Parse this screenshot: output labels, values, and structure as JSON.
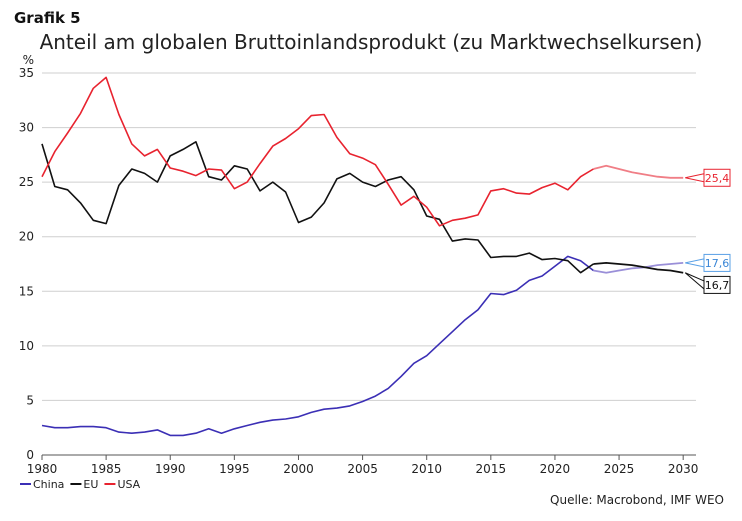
{
  "figure_label": "Grafik 5",
  "source": "Quelle: Macrobond, IMF WEO",
  "chart_data": {
    "type": "line",
    "title": "Anteil am globalen Bruttoinlandsprodukt (zu Marktwechselkursen)",
    "ylabel": "%",
    "xlabel": "",
    "xlim": [
      1980,
      2031
    ],
    "ylim": [
      0,
      35
    ],
    "xticks": [
      1980,
      1985,
      1990,
      1995,
      2000,
      2005,
      2010,
      2015,
      2020,
      2025,
      2030
    ],
    "yticks": [
      0,
      5,
      10,
      15,
      20,
      25,
      30,
      35
    ],
    "grid": "horizontal",
    "legend_position": "bottom-left",
    "forecast_from": 2023,
    "series": [
      {
        "name": "China",
        "color": "#3b2fb5",
        "forecast_color": "#9a8fd8",
        "x": [
          1980,
          1981,
          1982,
          1983,
          1984,
          1985,
          1986,
          1987,
          1988,
          1989,
          1990,
          1991,
          1992,
          1993,
          1994,
          1995,
          1996,
          1997,
          1998,
          1999,
          2000,
          2001,
          2002,
          2003,
          2004,
          2005,
          2006,
          2007,
          2008,
          2009,
          2010,
          2011,
          2012,
          2013,
          2014,
          2015,
          2016,
          2017,
          2018,
          2019,
          2020,
          2021,
          2022,
          2023,
          2024,
          2025,
          2026,
          2027,
          2028,
          2029,
          2030
        ],
        "values": [
          2.7,
          2.5,
          2.5,
          2.6,
          2.6,
          2.5,
          2.1,
          2.0,
          2.1,
          2.3,
          1.8,
          1.8,
          2.0,
          2.4,
          2.0,
          2.4,
          2.7,
          3.0,
          3.2,
          3.3,
          3.5,
          3.9,
          4.2,
          4.3,
          4.5,
          4.9,
          5.4,
          6.1,
          7.2,
          8.4,
          9.1,
          10.2,
          11.3,
          12.4,
          13.3,
          14.8,
          14.7,
          15.1,
          16.0,
          16.4,
          17.3,
          18.2,
          17.8,
          16.9,
          16.7,
          16.9,
          17.1,
          17.2,
          17.4,
          17.5,
          17.6
        ],
        "end_label": "17,6"
      },
      {
        "name": "EU",
        "color": "#111111",
        "forecast_color": "#111111",
        "x": [
          1980,
          1981,
          1982,
          1983,
          1984,
          1985,
          1986,
          1987,
          1988,
          1989,
          1990,
          1991,
          1992,
          1993,
          1994,
          1995,
          1996,
          1997,
          1998,
          1999,
          2000,
          2001,
          2002,
          2003,
          2004,
          2005,
          2006,
          2007,
          2008,
          2009,
          2010,
          2011,
          2012,
          2013,
          2014,
          2015,
          2016,
          2017,
          2018,
          2019,
          2020,
          2021,
          2022,
          2023,
          2024,
          2025,
          2026,
          2027,
          2028,
          2029,
          2030
        ],
        "values": [
          28.5,
          24.6,
          24.3,
          23.1,
          21.5,
          21.2,
          24.7,
          26.2,
          25.8,
          25.0,
          27.4,
          28.0,
          28.7,
          25.5,
          25.2,
          26.5,
          26.2,
          24.2,
          25.0,
          24.1,
          21.3,
          21.8,
          23.1,
          25.3,
          25.8,
          25.0,
          24.6,
          25.2,
          25.5,
          24.3,
          21.9,
          21.6,
          19.6,
          19.8,
          19.7,
          18.1,
          18.2,
          18.2,
          18.5,
          17.9,
          18.0,
          17.8,
          16.7,
          17.5,
          17.6,
          17.5,
          17.4,
          17.2,
          17.0,
          16.9,
          16.7
        ],
        "end_label": "16,7"
      },
      {
        "name": "USA",
        "color": "#e8232f",
        "forecast_color": "#f07e86",
        "x": [
          1980,
          1981,
          1982,
          1983,
          1984,
          1985,
          1986,
          1987,
          1988,
          1989,
          1990,
          1991,
          1992,
          1993,
          1994,
          1995,
          1996,
          1997,
          1998,
          1999,
          2000,
          2001,
          2002,
          2003,
          2004,
          2005,
          2006,
          2007,
          2008,
          2009,
          2010,
          2011,
          2012,
          2013,
          2014,
          2015,
          2016,
          2017,
          2018,
          2019,
          2020,
          2021,
          2022,
          2023,
          2024,
          2025,
          2026,
          2027,
          2028,
          2029,
          2030
        ],
        "values": [
          25.5,
          27.8,
          29.5,
          31.3,
          33.6,
          34.6,
          31.2,
          28.5,
          27.4,
          28.0,
          26.3,
          26.0,
          25.6,
          26.2,
          26.1,
          24.4,
          25.0,
          26.7,
          28.3,
          29.0,
          29.9,
          31.1,
          31.2,
          29.1,
          27.6,
          27.2,
          26.6,
          24.8,
          22.9,
          23.7,
          22.7,
          21.0,
          21.5,
          21.7,
          22.0,
          24.2,
          24.4,
          24.0,
          23.9,
          24.5,
          24.9,
          24.3,
          25.5,
          26.2,
          26.5,
          26.2,
          25.9,
          25.7,
          25.5,
          25.4,
          25.4
        ],
        "end_label": "25,4"
      }
    ]
  }
}
